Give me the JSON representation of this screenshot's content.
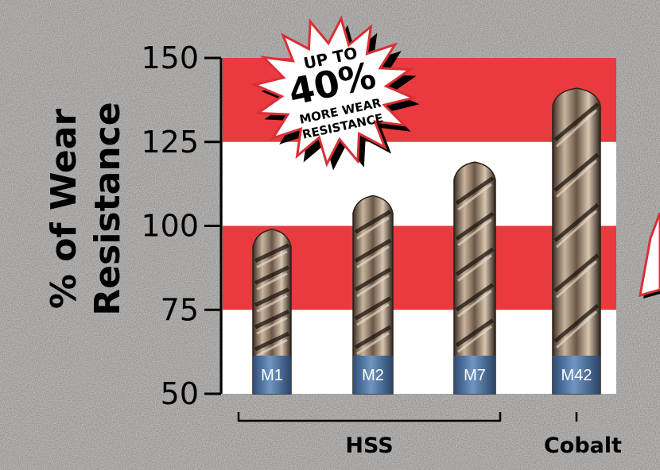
{
  "chart_data": {
    "type": "bar",
    "ylabel_line1": "% of Wear",
    "ylabel_line2": "Resistance",
    "ylim": [
      50,
      150
    ],
    "yticks": [
      50,
      75,
      100,
      125,
      150
    ],
    "categories": [
      "M1",
      "M2",
      "M7",
      "M42"
    ],
    "values": [
      99,
      109,
      119,
      141
    ],
    "groups": [
      {
        "label": "HSS",
        "categories": [
          "M1",
          "M2",
          "M7"
        ]
      },
      {
        "label": "Cobalt",
        "categories": [
          "M42"
        ]
      }
    ],
    "bands": [
      [
        75,
        100
      ],
      [
        100,
        125
      ],
      [
        125,
        150
      ]
    ],
    "band_colors": [
      "#e83a3f",
      "#ffffff"
    ],
    "starburst": {
      "line1": "UP TO",
      "line2": "40%",
      "line3": "MORE WEAR",
      "line4": "RESISTANCE"
    },
    "colors": {
      "band_red": "#e83a3f",
      "band_white": "#ffffff",
      "drill_body": "#a08a72",
      "drill_shank": "#4f78a8"
    }
  }
}
